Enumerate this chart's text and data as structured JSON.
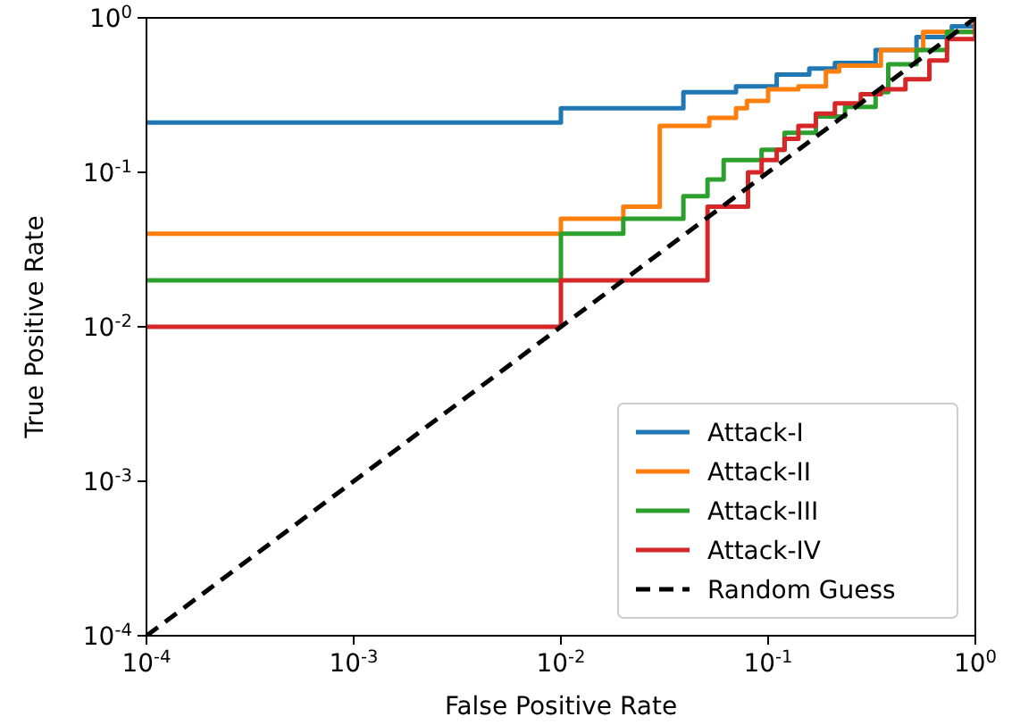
{
  "chart_data": {
    "type": "step",
    "xlabel": "False Positive Rate",
    "ylabel": "True Positive Rate",
    "log": "xy",
    "xlim": [
      0.0001,
      1
    ],
    "ylim": [
      0.0001,
      1
    ],
    "xticks": [
      {
        "value": 0.0001,
        "label": "10$^{-4}$"
      },
      {
        "value": 0.001,
        "label": "10$^{-3}$"
      },
      {
        "value": 0.01,
        "label": "10$^{-2}$"
      },
      {
        "value": 0.1,
        "label": "10$^{-1}$"
      },
      {
        "value": 1,
        "label": "10$^{0}$"
      }
    ],
    "yticks": [
      {
        "value": 0.0001,
        "label": "10$^{-4}$"
      },
      {
        "value": 0.001,
        "label": "10$^{-3}$"
      },
      {
        "value": 0.01,
        "label": "10$^{-2}$"
      },
      {
        "value": 0.1,
        "label": "10$^{-1}$"
      },
      {
        "value": 1,
        "label": "10$^{0}$"
      }
    ],
    "legend": "bottom right",
    "grid": false,
    "series": [
      {
        "name": "Attack-I",
        "color": "#1f77b4",
        "x": [
          0.0001,
          0.01,
          0.039,
          0.07,
          0.11,
          0.158,
          0.21,
          0.33,
          0.52,
          0.77,
          1
        ],
        "values": [
          0.21,
          0.26,
          0.33,
          0.36,
          0.43,
          0.47,
          0.51,
          0.62,
          0.75,
          0.88,
          1
        ]
      },
      {
        "name": "Attack-II",
        "color": "#ff7f0e",
        "x": [
          0.0001,
          0.01,
          0.02,
          0.03,
          0.052,
          0.07,
          0.079,
          0.1,
          0.14,
          0.19,
          0.22,
          0.35,
          0.56,
          1
        ],
        "values": [
          0.04,
          0.05,
          0.06,
          0.2,
          0.225,
          0.26,
          0.29,
          0.345,
          0.36,
          0.45,
          0.49,
          0.62,
          0.81,
          1
        ]
      },
      {
        "name": "Attack-III",
        "color": "#2ca02c",
        "x": [
          0.0001,
          0.01,
          0.02,
          0.039,
          0.051,
          0.061,
          0.093,
          0.12,
          0.17,
          0.235,
          0.33,
          0.38,
          0.52,
          0.73,
          1
        ],
        "values": [
          0.02,
          0.04,
          0.05,
          0.07,
          0.09,
          0.12,
          0.14,
          0.18,
          0.23,
          0.265,
          0.33,
          0.5,
          0.62,
          0.81,
          1
        ]
      },
      {
        "name": "Attack-IV",
        "color": "#d62728",
        "x": [
          0.0001,
          0.01,
          0.051,
          0.08,
          0.093,
          0.11,
          0.12,
          0.14,
          0.17,
          0.21,
          0.28,
          0.35,
          0.46,
          0.6,
          0.73,
          1
        ],
        "values": [
          0.01,
          0.02,
          0.06,
          0.1,
          0.12,
          0.14,
          0.165,
          0.2,
          0.24,
          0.28,
          0.32,
          0.345,
          0.4,
          0.53,
          0.73,
          1
        ]
      },
      {
        "name": "Random Guess",
        "type": "line",
        "line_style": "dashed",
        "color": "#000000",
        "x": [
          0.0001,
          1
        ],
        "values": [
          0.0001,
          1
        ]
      }
    ]
  }
}
